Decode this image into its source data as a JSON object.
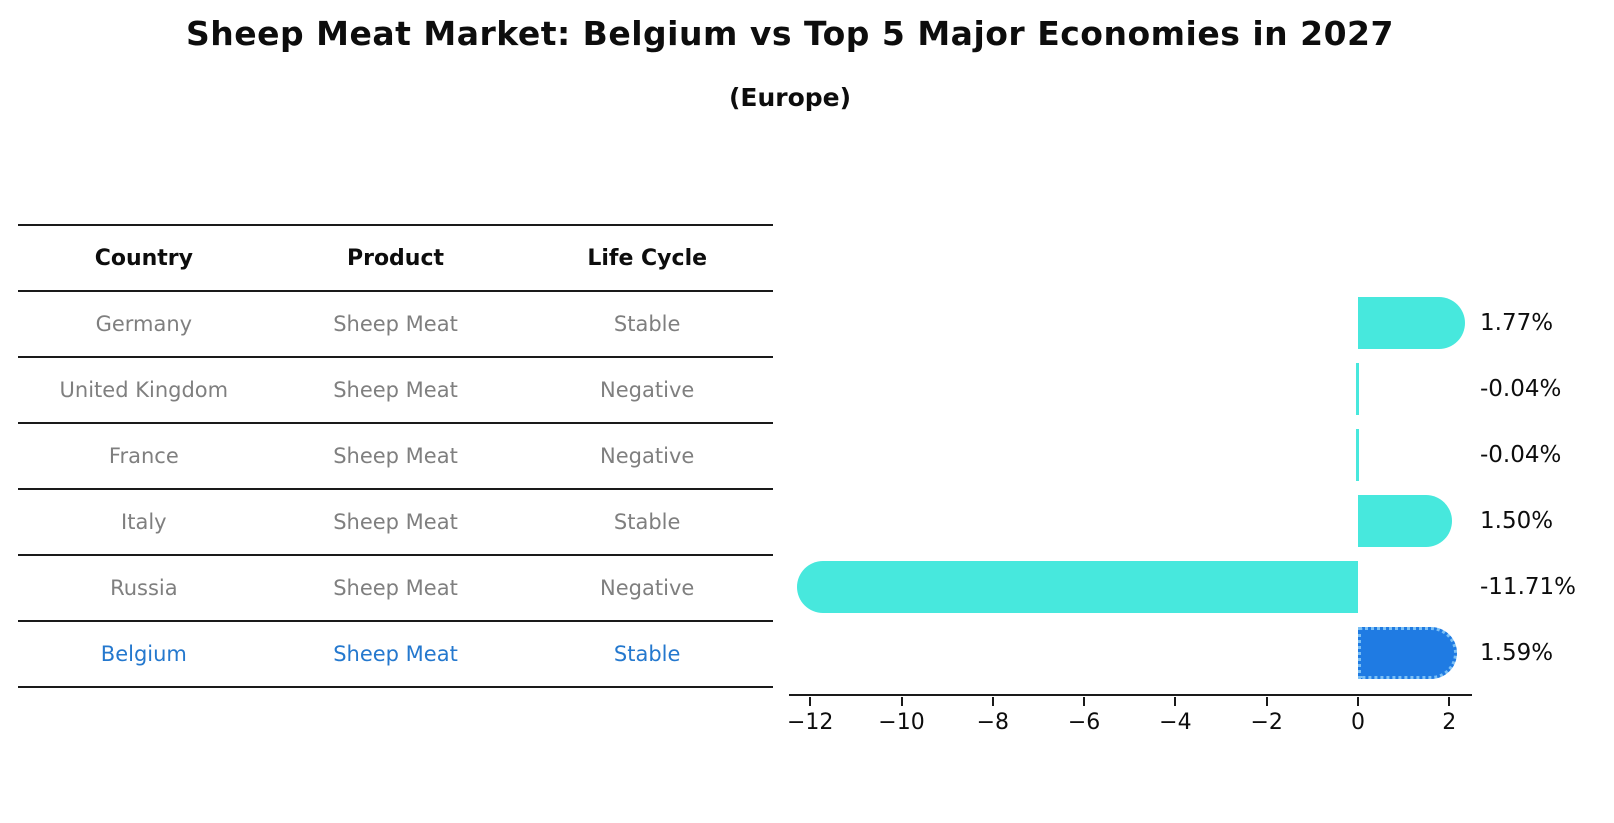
{
  "title": "Sheep Meat Market: Belgium vs Top 5 Major Economies in 2027",
  "subtitle": "(Europe)",
  "colors": {
    "bar": "#47E8DD",
    "highlight_bar": "#1F7BE3",
    "highlight_bar_edge": "#7cc0f5",
    "highlight_text": "#2478CE",
    "table_text": "#7f7f7f",
    "header_text": "#0d0d0d",
    "axis": "#1a1a1a"
  },
  "table": {
    "headers": [
      "Country",
      "Product",
      "Life Cycle"
    ],
    "rows": [
      {
        "country": "Germany",
        "product": "Sheep Meat",
        "life_cycle": "Stable",
        "highlighted": false
      },
      {
        "country": "United Kingdom",
        "product": "Sheep Meat",
        "life_cycle": "Negative",
        "highlighted": false
      },
      {
        "country": "France",
        "product": "Sheep Meat",
        "life_cycle": "Negative",
        "highlighted": false
      },
      {
        "country": "Italy",
        "product": "Sheep Meat",
        "life_cycle": "Stable",
        "highlighted": false
      },
      {
        "country": "Russia",
        "product": "Sheep Meat",
        "life_cycle": "Negative",
        "highlighted": false
      },
      {
        "country": "Belgium",
        "product": "Sheep Meat",
        "life_cycle": "Stable",
        "highlighted": true
      }
    ]
  },
  "chart_data": {
    "type": "bar",
    "orientation": "horizontal",
    "title": "Sheep Meat Market: Belgium vs Top 5 Major Economies in 2027 (Europe)",
    "categories": [
      "Germany",
      "United Kingdom",
      "France",
      "Italy",
      "Russia",
      "Belgium"
    ],
    "values": [
      1.77,
      -0.04,
      -0.04,
      1.5,
      -11.71,
      1.59
    ],
    "labels": [
      "1.77%",
      "-0.04%",
      "-0.04%",
      "1.50%",
      "-11.71%",
      "1.59%"
    ],
    "highlight_index": 5,
    "xticks": [
      -12,
      -10,
      -8,
      -6,
      -4,
      -2,
      0,
      2
    ],
    "xtick_labels": [
      "−12",
      "−10",
      "−8",
      "−6",
      "−4",
      "−2",
      "0",
      "2"
    ],
    "xlim": [
      -12.46,
      2.5
    ],
    "grid": false,
    "legend": null
  }
}
